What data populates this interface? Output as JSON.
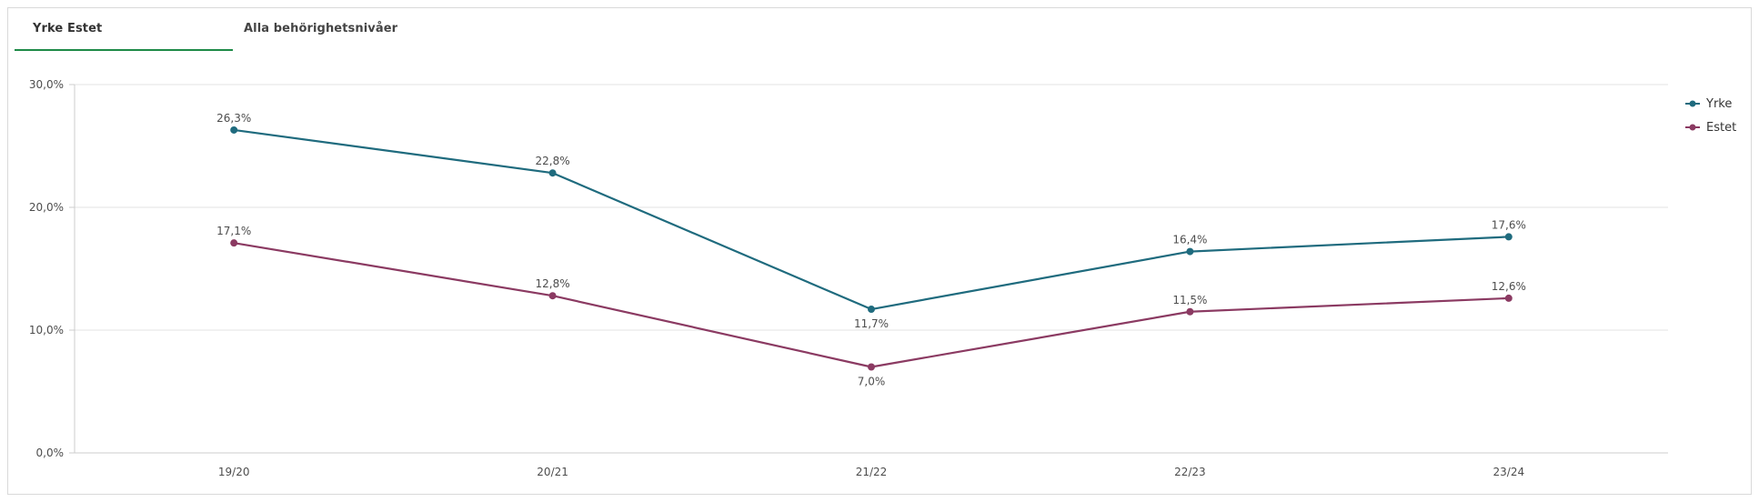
{
  "tabs": [
    {
      "label": "Yrke Estet",
      "active": true
    },
    {
      "label": "Alla behörighetsnivåer",
      "active": false
    }
  ],
  "colors": {
    "series_yrke": "#1f6b7e",
    "series_estet": "#8b3a62",
    "tab_underline": "#1d8a47",
    "grid": "#e3e3e3",
    "axis": "#cccccc",
    "text": "#4d4d4d"
  },
  "chart_data": {
    "type": "line",
    "title": "",
    "xlabel": "",
    "ylabel": "",
    "categories": [
      "19/20",
      "20/21",
      "21/22",
      "22/23",
      "23/24"
    ],
    "ylim": [
      0,
      30
    ],
    "yticks": [
      0,
      10,
      20,
      30
    ],
    "ytick_labels": [
      "0,0%",
      "10,0%",
      "20,0%",
      "30,0%"
    ],
    "grid": true,
    "legend_position": "top-right",
    "series": [
      {
        "name": "Yrke",
        "values": [
          26.3,
          22.8,
          11.7,
          16.4,
          17.6
        ],
        "labels": [
          "26,3%",
          "22,8%",
          "11,7%",
          "16,4%",
          "17,6%"
        ],
        "label_positions": [
          "above",
          "above",
          "below",
          "above",
          "above"
        ]
      },
      {
        "name": "Estet",
        "values": [
          17.1,
          12.8,
          7.0,
          11.5,
          12.6
        ],
        "labels": [
          "17,1%",
          "12,8%",
          "7,0%",
          "11,5%",
          "12,6%"
        ],
        "label_positions": [
          "above",
          "above",
          "below",
          "above",
          "above"
        ]
      }
    ]
  }
}
